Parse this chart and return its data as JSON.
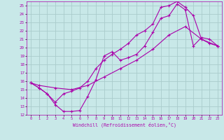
{
  "xlabel": "Windchill (Refroidissement éolien,°C)",
  "xlim": [
    -0.5,
    23.5
  ],
  "ylim": [
    12,
    25.5
  ],
  "xticks": [
    0,
    1,
    2,
    3,
    4,
    5,
    6,
    7,
    8,
    9,
    10,
    11,
    12,
    13,
    14,
    15,
    16,
    17,
    18,
    19,
    20,
    21,
    22,
    23
  ],
  "yticks": [
    12,
    13,
    14,
    15,
    16,
    17,
    18,
    19,
    20,
    21,
    22,
    23,
    24,
    25
  ],
  "bg_color": "#c8e8e8",
  "line_color": "#aa00aa",
  "grid_color": "#aacccc",
  "line1_x": [
    0,
    1,
    2,
    3,
    4,
    5,
    6,
    7,
    8,
    9,
    10,
    11,
    12,
    13,
    14,
    15,
    16,
    17,
    18,
    19,
    20,
    21,
    22,
    23
  ],
  "line1_y": [
    15.8,
    15.2,
    14.5,
    13.2,
    12.4,
    12.4,
    12.5,
    14.2,
    16.2,
    19.0,
    19.5,
    18.5,
    18.8,
    19.2,
    20.2,
    21.8,
    23.5,
    23.8,
    25.2,
    24.5,
    20.2,
    21.2,
    21.0,
    20.2
  ],
  "line2_x": [
    0,
    1,
    2,
    3,
    4,
    5,
    6,
    7,
    8,
    9,
    10,
    11,
    12,
    13,
    14,
    15,
    16,
    17,
    18,
    19,
    20,
    21,
    22,
    23
  ],
  "line2_y": [
    15.8,
    15.2,
    14.5,
    13.5,
    14.5,
    14.8,
    15.2,
    16.0,
    17.5,
    18.5,
    19.2,
    19.8,
    20.5,
    21.5,
    22.0,
    22.8,
    24.8,
    25.0,
    25.5,
    24.8,
    23.8,
    21.0,
    20.5,
    20.2
  ],
  "line3_x": [
    0,
    1,
    3,
    5,
    7,
    9,
    11,
    13,
    15,
    17,
    19,
    21,
    23
  ],
  "line3_y": [
    15.8,
    15.5,
    15.2,
    15.0,
    15.5,
    16.5,
    17.5,
    18.5,
    19.8,
    21.5,
    22.5,
    21.0,
    20.2
  ]
}
